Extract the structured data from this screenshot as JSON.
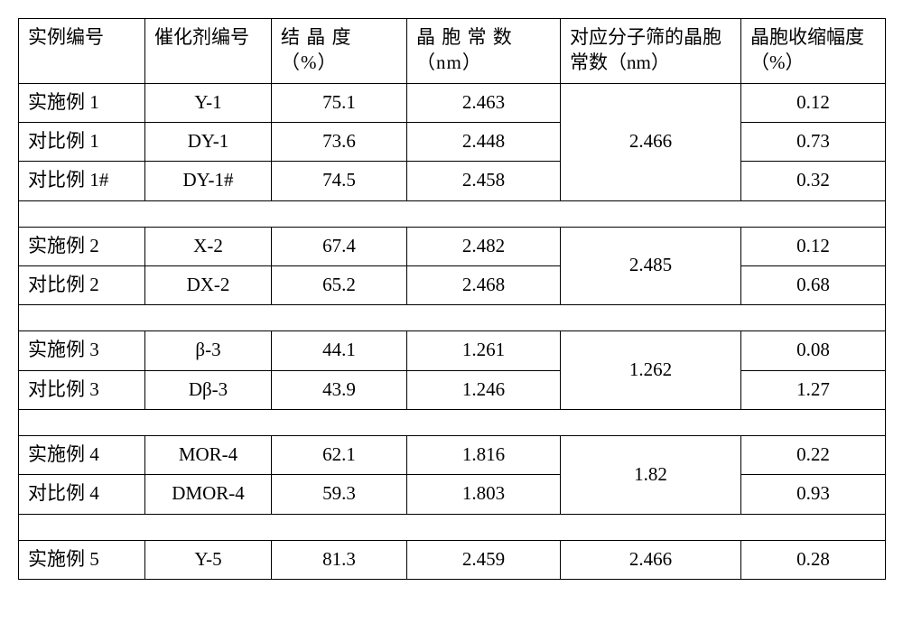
{
  "headers": {
    "col1": "实例编号",
    "col2": "催化剂编号",
    "col3": "结 晶 度（%）",
    "col4": "晶 胞 常 数（nm）",
    "col5": "对应分子筛的晶胞常数（nm）",
    "col6": "晶胞收缩幅度（%）"
  },
  "groups": [
    {
      "sieve_constant": "2.466",
      "rows": [
        {
          "example": "实施例 1",
          "catalyst": "Y-1",
          "crystallinity": "75.1",
          "cell": "2.463",
          "shrink": "0.12"
        },
        {
          "example": "对比例 1",
          "catalyst": "DY-1",
          "crystallinity": "73.6",
          "cell": "2.448",
          "shrink": "0.73"
        },
        {
          "example": "对比例 1#",
          "catalyst": "DY-1#",
          "crystallinity": "74.5",
          "cell": "2.458",
          "shrink": "0.32"
        }
      ]
    },
    {
      "sieve_constant": "2.485",
      "rows": [
        {
          "example": "实施例 2",
          "catalyst": "X-2",
          "crystallinity": "67.4",
          "cell": "2.482",
          "shrink": "0.12"
        },
        {
          "example": "对比例 2",
          "catalyst": "DX-2",
          "crystallinity": "65.2",
          "cell": "2.468",
          "shrink": "0.68"
        }
      ]
    },
    {
      "sieve_constant": "1.262",
      "rows": [
        {
          "example": "实施例 3",
          "catalyst": "β-3",
          "crystallinity": "44.1",
          "cell": "1.261",
          "shrink": "0.08"
        },
        {
          "example": "对比例 3",
          "catalyst": "Dβ-3",
          "crystallinity": "43.9",
          "cell": "1.246",
          "shrink": "1.27"
        }
      ]
    },
    {
      "sieve_constant": "1.82",
      "rows": [
        {
          "example": "实施例 4",
          "catalyst": "MOR-4",
          "crystallinity": "62.1",
          "cell": "1.816",
          "shrink": "0.22"
        },
        {
          "example": "对比例 4",
          "catalyst": "DMOR-4",
          "crystallinity": "59.3",
          "cell": "1.803",
          "shrink": "0.93"
        }
      ]
    },
    {
      "sieve_constant": "2.466",
      "rows": [
        {
          "example": "实施例 5",
          "catalyst": "Y-5",
          "crystallinity": "81.3",
          "cell": "2.459",
          "shrink": "0.28"
        }
      ]
    }
  ]
}
